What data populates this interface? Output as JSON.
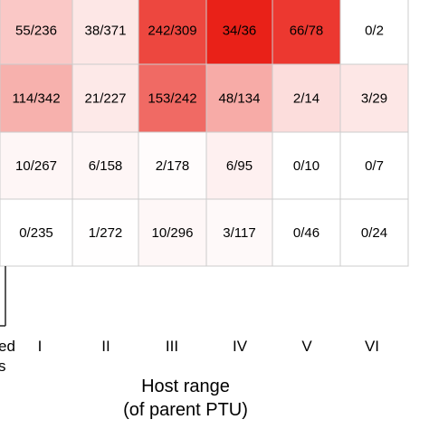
{
  "chart_data": {
    "type": "heatmap",
    "columns": [
      "I",
      "II",
      "III",
      "IV",
      "V",
      "VI"
    ],
    "rows": [
      {
        "cells": [
          "55/236",
          "38/371",
          "242/309",
          "34/36",
          "66/78",
          "0/2"
        ],
        "fractions": [
          0.233,
          0.102,
          0.783,
          0.944,
          0.846,
          0.0
        ]
      },
      {
        "cells": [
          "114/342",
          "21/227",
          "153/242",
          "48/134",
          "2/14",
          "3/29"
        ],
        "fractions": [
          0.333,
          0.093,
          0.632,
          0.358,
          0.143,
          0.103
        ]
      },
      {
        "cells": [
          "10/267",
          "6/158",
          "2/178",
          "6/95",
          "0/10",
          "0/7"
        ],
        "fractions": [
          0.037,
          0.038,
          0.011,
          0.063,
          0.0,
          0.0
        ]
      },
      {
        "cells": [
          "0/235",
          "1/272",
          "10/296",
          "3/117",
          "0/46",
          "0/24"
        ],
        "fractions": [
          0.0,
          0.004,
          0.034,
          0.026,
          0.0,
          0.0
        ]
      }
    ],
    "xlabel_line1": "Host range",
    "xlabel_line2": "(of parent PTU)",
    "clipped_left_label_line1": "ed",
    "clipped_left_label_line2": "s",
    "color_low": "#ffffff",
    "color_high": "#e8140a",
    "grid_color": "#cccccc"
  }
}
